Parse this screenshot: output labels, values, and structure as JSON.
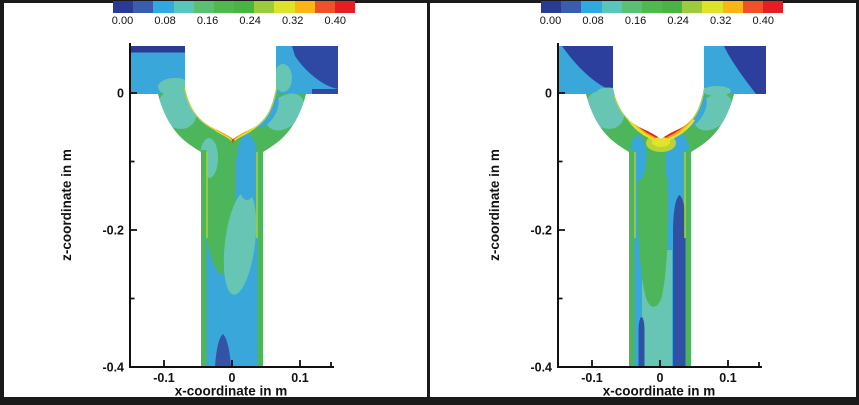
{
  "window": {
    "background": "#ffffff",
    "border_color": "#1a1a1a"
  },
  "colorbar": {
    "tick_labels": [
      "0.00",
      "0.08",
      "0.16",
      "0.24",
      "0.32",
      "0.40"
    ],
    "band_colors": [
      "#2a3b96",
      "#3a5cb1",
      "#2fa9e1",
      "#59c6bb",
      "#5bbf74",
      "#4fb94c",
      "#48b441",
      "#9ccb3d",
      "#dde22b",
      "#fbb616",
      "#f0512b",
      "#e81c24"
    ]
  },
  "plots": {
    "left": {
      "xlabel": "x-coordinate in m",
      "ylabel": "z-coordinate in m",
      "x_tick_labels": [
        "-0.1",
        "0",
        "0.1"
      ],
      "y_tick_labels": [
        "0",
        "-0.2",
        "-0.4"
      ]
    },
    "right": {
      "xlabel": "x-coordinate in m",
      "ylabel": "z-coordinate in m",
      "x_tick_labels": [
        "-0.1",
        "0",
        "0.1"
      ],
      "y_tick_labels": [
        "0",
        "-0.2",
        "-0.4"
      ]
    }
  },
  "chart_data": [
    {
      "type": "heatmap",
      "subtype": "filled-contour",
      "title": "",
      "xlabel": "x-coordinate in m",
      "ylabel": "z-coordinate in m",
      "xlim": [
        -0.15,
        0.15
      ],
      "ylim": [
        -0.4,
        0.075
      ],
      "x_ticks": [
        -0.1,
        0,
        0.1
      ],
      "y_ticks": [
        0,
        -0.2,
        -0.4
      ],
      "grid": false,
      "legend_position": "colorbar-top",
      "colorbar_ticks": [
        0.0,
        0.08,
        0.16,
        0.24,
        0.32,
        0.4
      ],
      "colorbar_range": [
        0.0,
        0.4
      ],
      "n_color_bands": 12,
      "band_value_step": 0.04,
      "geometry": "Y-shaped duct: two horizontal inlet arms (z from 0 to ~0.07 m, |x| from ~0.045 to ~0.15 m) converge through a curved V-section whose tip is at x~0, z~-0.065 m, into a vertical channel x~+/-0.046 m reaching down to z=-0.4 m",
      "regions": [
        {
          "location": "inlet arm interiors",
          "approx_value": 0.08
        },
        {
          "location": "top strip of left arm and upper-right of right arm",
          "approx_value": 0.02
        },
        {
          "location": "converging V-section",
          "approx_value": 0.18
        },
        {
          "location": "thin layer along inner V walls",
          "approx_value": 0.3
        },
        {
          "location": "V tip (merge point), small spots",
          "approx_value": 0.38
        },
        {
          "location": "vertical channel core",
          "approx_value": 0.1
        },
        {
          "location": "elongated patch right of centre just below merge",
          "approx_value": 0.08
        },
        {
          "location": "channel mid-height centre-right wedge",
          "approx_value": 0.13
        },
        {
          "location": "narrow plume at bottom centre",
          "approx_value": 0.03
        },
        {
          "location": "strips along channel walls",
          "approx_value": 0.18
        }
      ]
    },
    {
      "type": "heatmap",
      "subtype": "filled-contour",
      "title": "",
      "xlabel": "x-coordinate in m",
      "ylabel": "z-coordinate in m",
      "xlim": [
        -0.15,
        0.15
      ],
      "ylim": [
        -0.4,
        0.075
      ],
      "x_ticks": [
        -0.1,
        0,
        0.1
      ],
      "y_ticks": [
        0,
        -0.2,
        -0.4
      ],
      "grid": false,
      "legend_position": "colorbar-top",
      "colorbar_ticks": [
        0.0,
        0.08,
        0.16,
        0.24,
        0.32,
        0.4
      ],
      "colorbar_range": [
        0.0,
        0.4
      ],
      "n_color_bands": 12,
      "band_value_step": 0.04,
      "geometry": "Same Y-shaped duct as left plot",
      "regions": [
        {
          "location": "inlet arm interiors",
          "approx_value": 0.08
        },
        {
          "location": "large wedges in upper parts of both arms",
          "approx_value": 0.02
        },
        {
          "location": "converging V-section and central column in channel",
          "approx_value": 0.18
        },
        {
          "location": "thick red arcs along inner V walls near tip",
          "approx_value": 0.4
        },
        {
          "location": "orange-yellow pocket just below V tip",
          "approx_value": 0.3
        },
        {
          "location": "long dark-blue streak right of centre (z~-0.07 to -0.4)",
          "approx_value": 0.04
        },
        {
          "location": "short dark-blue streak lower-left (z~-0.28 to -0.4)",
          "approx_value": 0.04
        },
        {
          "location": "channel sides",
          "approx_value": 0.1
        },
        {
          "location": "turquoise centre near bottom",
          "approx_value": 0.13
        },
        {
          "location": "strips along channel walls",
          "approx_value": 0.18
        }
      ]
    }
  ]
}
